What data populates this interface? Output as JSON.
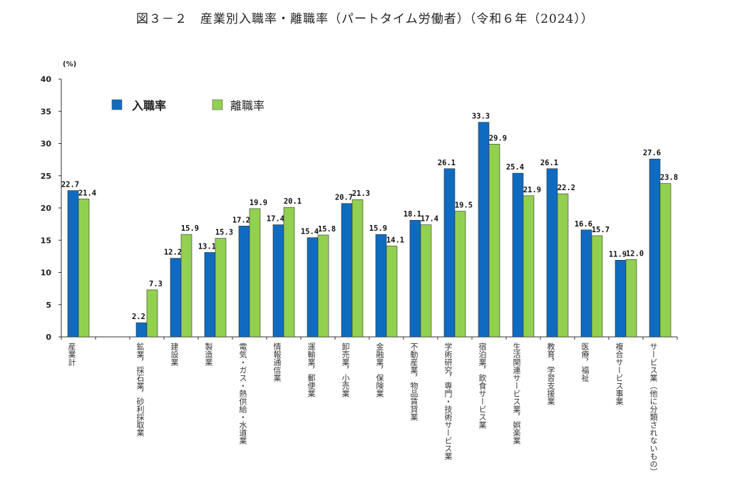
{
  "chart_data": {
    "type": "bar",
    "title": "図３－２　産業別入職率・離職率（パートタイム労働者）（令和６年（2024））",
    "ylabel": "(%)",
    "ylim": [
      0,
      40
    ],
    "yticks": [
      0,
      5,
      10,
      15,
      20,
      25,
      30,
      35,
      40
    ],
    "grid": false,
    "legend_placement": "top-left",
    "categories": [
      "産業計",
      "鉱業，採石業，砂利採取業",
      "建設業",
      "製造業",
      "電気・ガス・熱供給・水道業",
      "情報通信業",
      "運輸業，郵便業",
      "卸売業，小売業",
      "金融業，保険業",
      "不動産業，物品賃貸業",
      "学術研究，専門・技術サービス業",
      "宿泊業，飲食サービス業",
      "生活関連サービス業，娯楽業",
      "教育，学習支援業",
      "医療，福祉",
      "複合サービス事業",
      "サービス業（他に分類されないもの）"
    ],
    "series": [
      {
        "name": "入職率",
        "color": "#0f6bbf",
        "values": [
          22.7,
          2.2,
          12.2,
          13.1,
          17.2,
          17.4,
          15.4,
          20.7,
          15.9,
          18.1,
          26.1,
          33.3,
          25.4,
          26.1,
          16.6,
          11.9,
          27.6
        ]
      },
      {
        "name": "離職率",
        "color": "#92d050",
        "values": [
          21.4,
          7.3,
          15.9,
          15.3,
          19.9,
          20.1,
          15.8,
          21.3,
          14.1,
          17.4,
          19.5,
          29.9,
          21.9,
          22.2,
          15.7,
          12.0,
          23.8
        ]
      }
    ]
  }
}
